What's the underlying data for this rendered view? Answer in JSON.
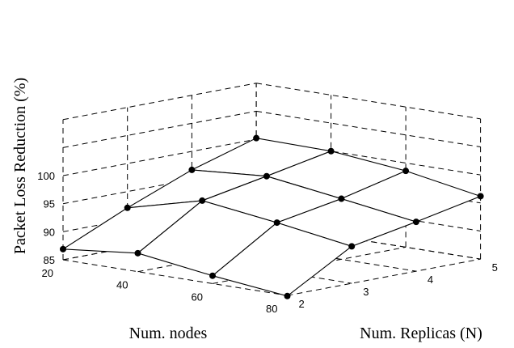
{
  "chart_data": {
    "type": "surface3d",
    "title": "",
    "xlabel": "Num. nodes",
    "ylabel": "Num. Replicas (N)",
    "zlabel": "Packet Loss Reduction (%)",
    "nodes": [
      20,
      40,
      60,
      80
    ],
    "replicas": [
      2,
      3,
      4,
      5
    ],
    "x_ticks": [
      "20",
      "40",
      "60",
      "80"
    ],
    "y_ticks": [
      "2",
      "3",
      "4",
      "5"
    ],
    "z_ticks": [
      "85",
      "90",
      "95",
      "100"
    ],
    "zlim": [
      85,
      100
    ],
    "grid": true,
    "series": [
      {
        "nodes": 20,
        "values": [
          86.9,
          92.1,
          96.7,
          100.2
        ]
      },
      {
        "nodes": 40,
        "values": [
          88.3,
          95.5,
          97.7,
          100.0
        ]
      },
      {
        "nodes": 60,
        "values": [
          86.4,
          93.7,
          95.8,
          98.6
        ]
      },
      {
        "nodes": 80,
        "values": [
          84.9,
          91.6,
          93.8,
          96.2
        ]
      }
    ]
  }
}
